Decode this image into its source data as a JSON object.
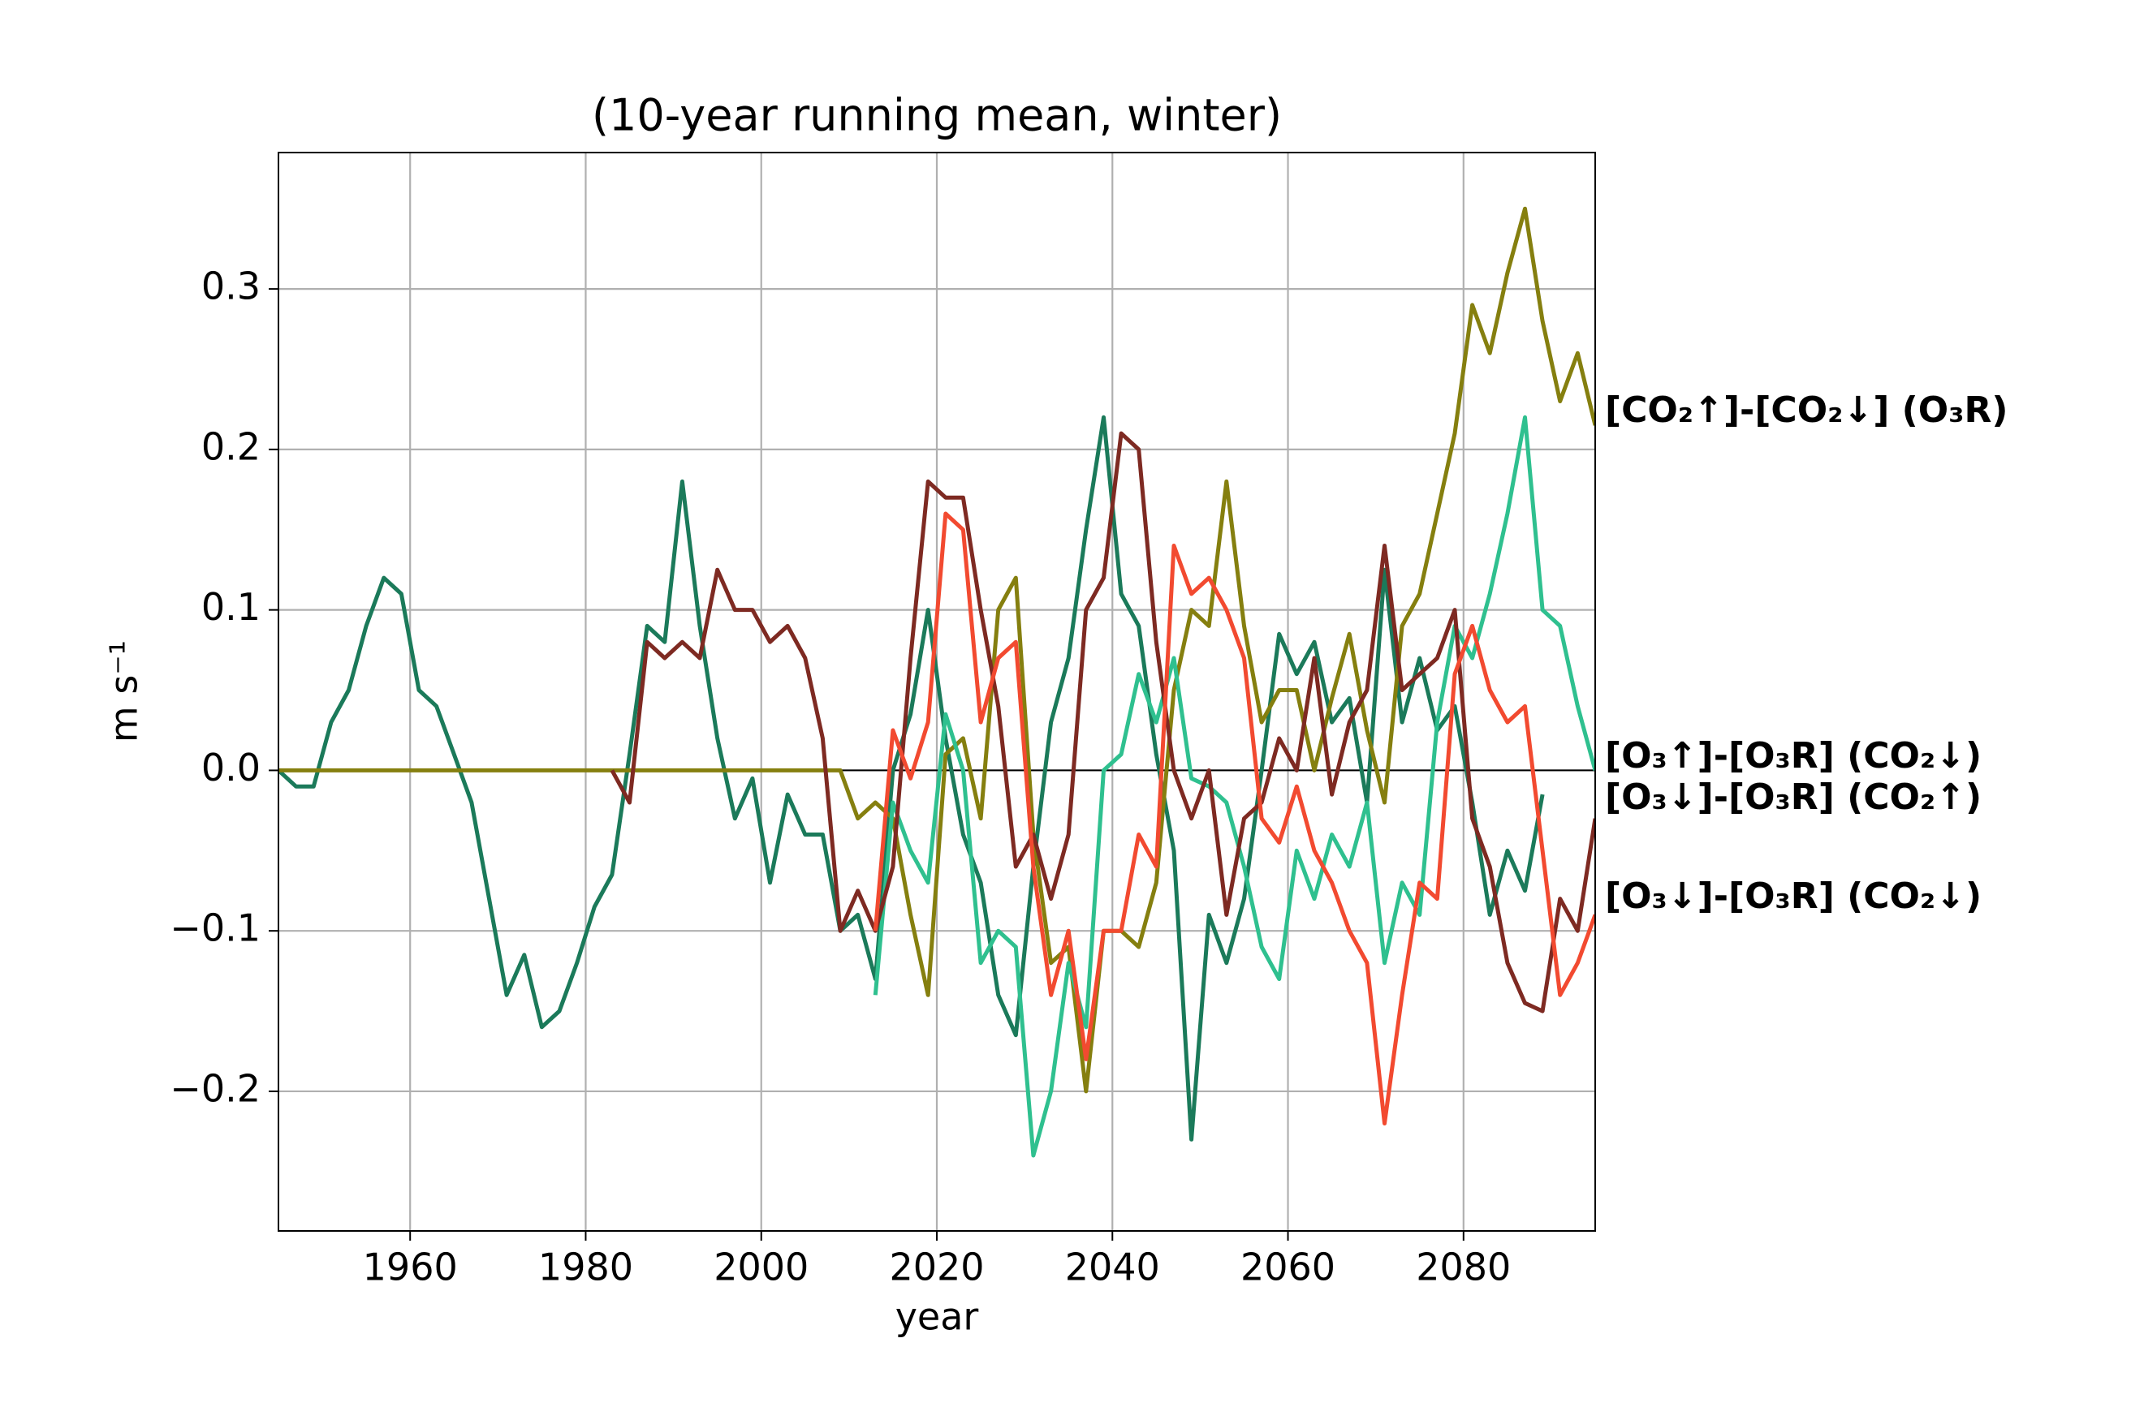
{
  "chart_data": {
    "type": "line",
    "title": "(10-year running mean, winter)",
    "xlabel": "year",
    "ylabel": "m s⁻¹",
    "xlim": [
      1945,
      2095
    ],
    "ylim": [
      -0.287,
      0.385
    ],
    "xticks": [
      1960,
      1980,
      2000,
      2020,
      2040,
      2060,
      2080
    ],
    "yticks": [
      {
        "value": -0.2,
        "label": "−0.2"
      },
      {
        "value": -0.1,
        "label": "−0.1"
      },
      {
        "value": 0,
        "label": "0.0"
      },
      0.1,
      0.2,
      0.3
    ],
    "grid": true,
    "axhline": 0,
    "x": [
      1945,
      1947,
      1949,
      1951,
      1953,
      1955,
      1957,
      1959,
      1961,
      1963,
      1965,
      1967,
      1969,
      1971,
      1973,
      1975,
      1977,
      1979,
      1981,
      1983,
      1985,
      1987,
      1989,
      1991,
      1993,
      1995,
      1997,
      1999,
      2001,
      2003,
      2005,
      2007,
      2009,
      2011,
      2013,
      2015,
      2017,
      2019,
      2021,
      2023,
      2025,
      2027,
      2029,
      2031,
      2033,
      2035,
      2037,
      2039,
      2041,
      2043,
      2045,
      2047,
      2049,
      2051,
      2053,
      2055,
      2057,
      2059,
      2061,
      2063,
      2065,
      2067,
      2069,
      2071,
      2073,
      2075,
      2077,
      2079,
      2081,
      2083,
      2085,
      2087,
      2089,
      2091,
      2093,
      2095
    ],
    "series": [
      {
        "color": "#1b7a5a",
        "values": [
          0,
          -0.01,
          -0.01,
          0.03,
          0.05,
          0.09,
          0.12,
          0.11,
          0.05,
          0.04,
          0.01,
          -0.02,
          -0.08,
          -0.14,
          -0.115,
          -0.16,
          -0.15,
          -0.12,
          -0.085,
          -0.065,
          0.01,
          0.09,
          0.08,
          0.18,
          0.09,
          0.02,
          -0.03,
          -0.005,
          -0.07,
          -0.015,
          -0.04,
          -0.04,
          -0.1,
          -0.09,
          -0.13,
          0,
          0.035,
          0.1,
          0.02,
          -0.04,
          -0.07,
          -0.14,
          -0.165,
          -0.06,
          0.03,
          0.07,
          0.15,
          0.22,
          0.11,
          0.09,
          0.01,
          -0.05,
          -0.23,
          -0.09,
          -0.12,
          -0.08,
          0,
          0.085,
          0.06,
          0.08,
          0.03,
          0.045,
          -0.02,
          0.125,
          0.03,
          0.07,
          0.025,
          0.04,
          -0.02,
          -0.09,
          -0.05,
          -0.075,
          -0.015,
          null,
          null,
          null
        ]
      },
      {
        "name": "[CO₂↑]-[CO₂↓] (O₃R)",
        "color": "#857f0f",
        "values": [
          0,
          0,
          0,
          0,
          0,
          0,
          0,
          0,
          0,
          0,
          0,
          0,
          0,
          0,
          0,
          0,
          0,
          0,
          0,
          0,
          0,
          0,
          0,
          0,
          0,
          0,
          0,
          0,
          0,
          0,
          0,
          0,
          0,
          -0.03,
          -0.02,
          -0.03,
          -0.09,
          -0.14,
          0.01,
          0.02,
          -0.03,
          0.1,
          0.12,
          -0.04,
          -0.12,
          -0.11,
          -0.2,
          -0.1,
          -0.1,
          -0.11,
          -0.07,
          0.05,
          0.1,
          0.09,
          0.18,
          0.09,
          0.03,
          0.05,
          0.05,
          0,
          0.045,
          0.085,
          0.025,
          -0.02,
          0.09,
          0.11,
          0.16,
          0.21,
          0.29,
          0.26,
          0.31,
          0.35,
          0.28,
          0.23,
          0.26,
          0.215
        ]
      },
      {
        "name": "[O₃↑]-[O₃R] (CO₂↓)",
        "color": "#2fc08f",
        "values": [
          null,
          null,
          null,
          null,
          null,
          null,
          null,
          null,
          null,
          null,
          null,
          null,
          null,
          null,
          null,
          null,
          null,
          null,
          null,
          null,
          null,
          null,
          null,
          null,
          null,
          null,
          null,
          null,
          null,
          null,
          null,
          null,
          null,
          null,
          -0.14,
          -0.02,
          -0.05,
          -0.07,
          0.035,
          0,
          -0.12,
          -0.1,
          -0.11,
          -0.24,
          -0.2,
          -0.12,
          -0.16,
          0,
          0.01,
          0.06,
          0.03,
          0.07,
          -0.005,
          -0.01,
          -0.02,
          -0.06,
          -0.11,
          -0.13,
          -0.05,
          -0.08,
          -0.04,
          -0.06,
          -0.02,
          -0.12,
          -0.07,
          -0.09,
          0.03,
          0.09,
          0.07,
          0.11,
          0.16,
          0.22,
          0.1,
          0.09,
          0.04,
          0
        ]
      },
      {
        "name": "[O₃↓]-[O₃R] (CO₂↑)",
        "color": "#7e2a22",
        "values": [
          null,
          null,
          null,
          null,
          null,
          null,
          null,
          null,
          null,
          null,
          null,
          null,
          null,
          null,
          null,
          null,
          null,
          null,
          null,
          0,
          -0.02,
          0.08,
          0.07,
          0.08,
          0.07,
          0.125,
          0.1,
          0.1,
          0.08,
          0.09,
          0.07,
          0.02,
          -0.1,
          -0.075,
          -0.1,
          -0.06,
          0.07,
          0.18,
          0.17,
          0.17,
          0.1,
          0.04,
          -0.06,
          -0.04,
          -0.08,
          -0.04,
          0.1,
          0.12,
          0.21,
          0.2,
          0.08,
          0,
          -0.03,
          0,
          -0.09,
          -0.03,
          -0.02,
          0.02,
          0,
          0.07,
          -0.015,
          0.03,
          0.05,
          0.14,
          0.05,
          0.06,
          0.07,
          0.1,
          -0.03,
          -0.06,
          -0.12,
          -0.145,
          -0.15,
          -0.08,
          -0.1,
          -0.03
        ]
      },
      {
        "name": "[O₃↓]-[O₃R] (CO₂↓)",
        "color": "#f24a30",
        "values": [
          null,
          null,
          null,
          null,
          null,
          null,
          null,
          null,
          null,
          null,
          null,
          null,
          null,
          null,
          null,
          null,
          null,
          null,
          null,
          null,
          null,
          null,
          null,
          null,
          null,
          null,
          null,
          null,
          null,
          null,
          null,
          null,
          null,
          null,
          -0.1,
          0.025,
          -0.005,
          0.03,
          0.16,
          0.15,
          0.03,
          0.07,
          0.08,
          -0.06,
          -0.14,
          -0.1,
          -0.18,
          -0.1,
          -0.1,
          -0.04,
          -0.06,
          0.14,
          0.11,
          0.12,
          0.1,
          0.07,
          -0.03,
          -0.045,
          -0.01,
          -0.05,
          -0.07,
          -0.1,
          -0.12,
          -0.22,
          -0.14,
          -0.07,
          -0.08,
          0.06,
          0.09,
          0.05,
          0.03,
          0.04,
          -0.05,
          -0.14,
          -0.12,
          -0.09
        ]
      }
    ]
  }
}
